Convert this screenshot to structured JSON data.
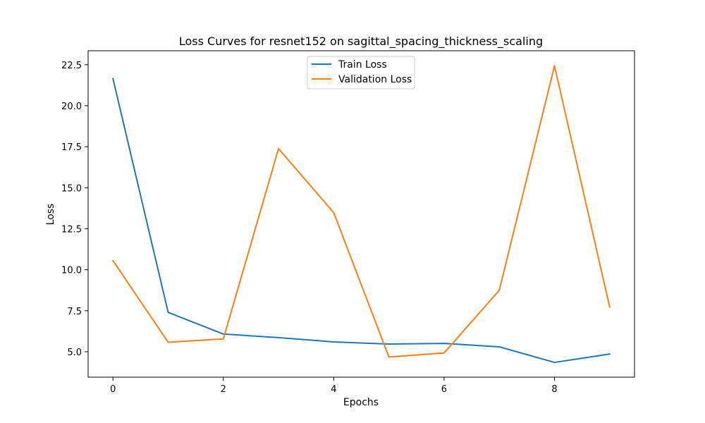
{
  "chart_data": {
    "type": "line",
    "title": "Loss Curves for resnet152 on sagittal_spacing_thickness_scaling",
    "xlabel": "Epochs",
    "ylabel": "Loss",
    "x": [
      0,
      1,
      2,
      3,
      4,
      5,
      6,
      7,
      8,
      9
    ],
    "xlim": [
      -0.45,
      9.45
    ],
    "ylim": [
      3.45,
      23.35
    ],
    "xticks": [
      0,
      2,
      4,
      6,
      8
    ],
    "yticks": [
      5.0,
      7.5,
      10.0,
      12.5,
      15.0,
      17.5,
      20.0,
      22.5
    ],
    "ytick_labels": [
      "5.0",
      "7.5",
      "10.0",
      "12.5",
      "15.0",
      "17.5",
      "20.0",
      "22.5"
    ],
    "grid": false,
    "legend_placement": "upper center",
    "series": [
      {
        "name": "Train Loss",
        "color": "#1f77b4",
        "values": [
          21.65,
          7.4,
          6.08,
          5.86,
          5.6,
          5.47,
          5.51,
          5.3,
          4.35,
          4.86
        ]
      },
      {
        "name": "Validation Loss",
        "color": "#ff7f0e",
        "values": [
          10.55,
          5.58,
          5.78,
          17.38,
          13.48,
          4.68,
          4.93,
          8.75,
          22.43,
          7.73
        ]
      }
    ]
  }
}
